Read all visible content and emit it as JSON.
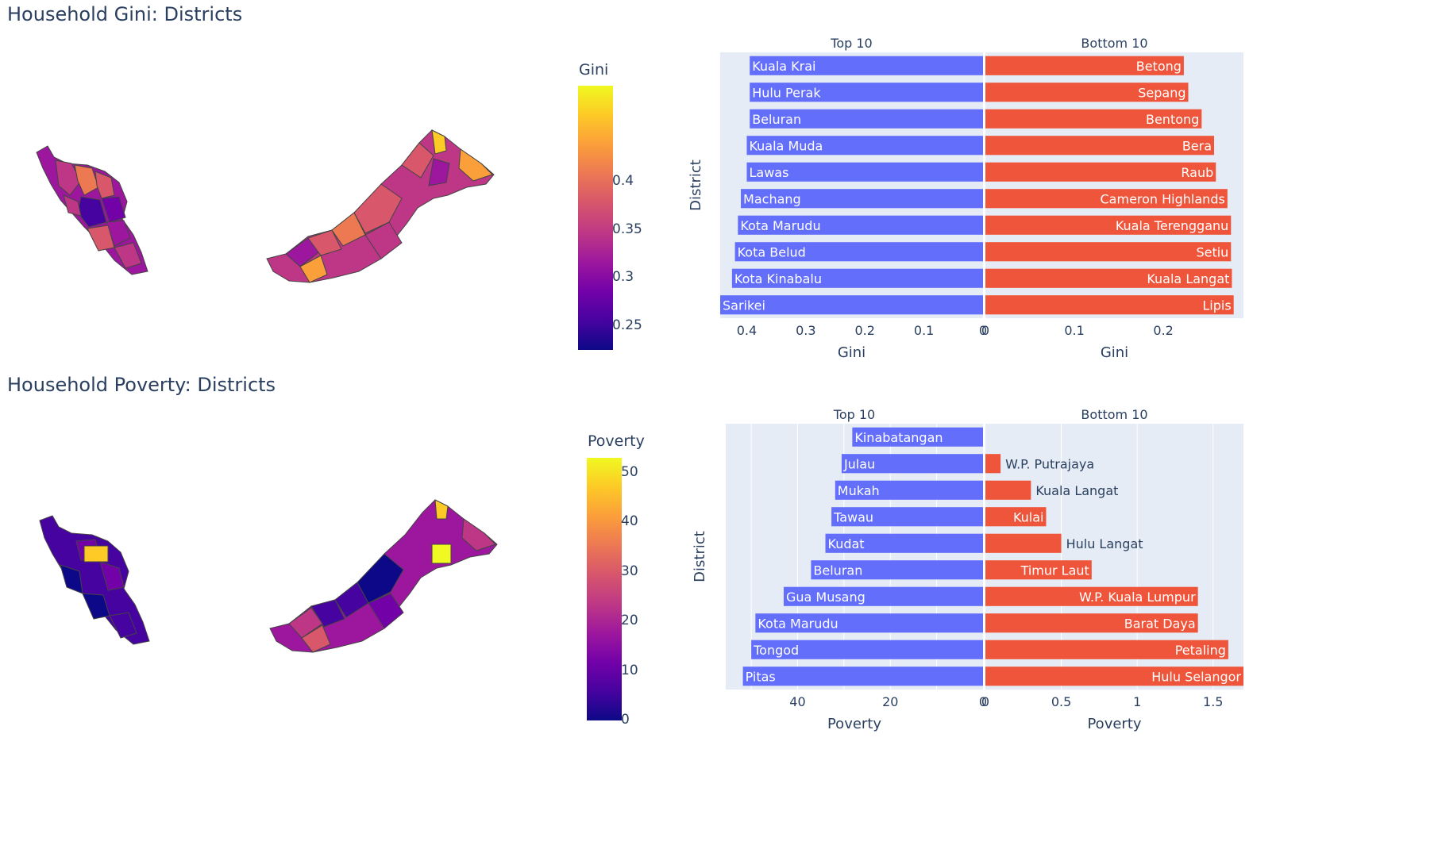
{
  "gini_section": {
    "title": "Household Gini: Districts",
    "colorbar": {
      "title": "Gini",
      "ticks": [
        "0.4",
        "0.35",
        "0.3",
        "0.25"
      ],
      "tick_values": [
        0.4,
        0.35,
        0.3,
        0.25
      ],
      "range": [
        0.225,
        0.5
      ],
      "colorscale": "plasma"
    }
  },
  "poverty_section": {
    "title": "Household Poverty: Districts",
    "colorbar": {
      "title": "Poverty",
      "ticks": [
        "50",
        "40",
        "30",
        "20",
        "10",
        "0"
      ],
      "tick_values": [
        50,
        40,
        30,
        20,
        10,
        0
      ],
      "range": [
        0,
        53
      ],
      "colorscale": "plasma"
    }
  },
  "colors": {
    "top_bar": "#636efa",
    "bottom_bar": "#ef553b",
    "plot_bg": "#e5ecf6",
    "text": "#2a3f5f",
    "map_outline": "#444444",
    "plasma": [
      "#0d0887",
      "#46039f",
      "#7201a8",
      "#9c179e",
      "#bd3786",
      "#d8576b",
      "#ed7953",
      "#fb9f3a",
      "#fdca26",
      "#f0f921"
    ]
  },
  "chart_data": [
    {
      "type": "bar",
      "orientation": "horizontal",
      "panel": "Top 10",
      "subtitle": "Top 10",
      "ylabel": "District",
      "xlabel": "Gini",
      "x_reversed": true,
      "xlim": [
        0.445,
        0
      ],
      "xticks": [
        0.4,
        0.3,
        0.2,
        0.1,
        0
      ],
      "xtick_labels": [
        "0.4",
        "0.3",
        "0.2",
        "0.1",
        "0"
      ],
      "categories": [
        "Kuala Krai",
        "Hulu Perak",
        "Beluran",
        "Kuala Muda",
        "Lawas",
        "Machang",
        "Kota Marudu",
        "Kota Belud",
        "Kota Kinabalu",
        "Sarikei"
      ],
      "values": [
        0.395,
        0.395,
        0.395,
        0.4,
        0.4,
        0.41,
        0.415,
        0.42,
        0.425,
        0.445
      ],
      "label_position": "inside"
    },
    {
      "type": "bar",
      "orientation": "horizontal",
      "panel": "Bottom 10",
      "subtitle": "Bottom 10",
      "xlabel": "Gini",
      "xlim": [
        0,
        0.29
      ],
      "xticks": [
        0,
        0.1,
        0.2
      ],
      "xtick_labels": [
        "0",
        "0.1",
        "0.2"
      ],
      "categories": [
        "Betong",
        "Sepang",
        "Bentong",
        "Bera",
        "Raub",
        "Cameron Highlands",
        "Kuala Terengganu",
        "Setiu",
        "Kuala Langat",
        "Lipis"
      ],
      "values": [
        0.223,
        0.228,
        0.243,
        0.257,
        0.259,
        0.272,
        0.276,
        0.276,
        0.277,
        0.279
      ],
      "label_position": "inside"
    },
    {
      "type": "bar",
      "orientation": "horizontal",
      "panel": "Top 10",
      "subtitle": "Top 10",
      "ylabel": "District",
      "xlabel": "Poverty",
      "x_reversed": true,
      "xlim": [
        55.5,
        0
      ],
      "xticks": [
        40,
        20,
        0
      ],
      "xtick_labels": [
        "40",
        "20",
        "0"
      ],
      "gridlines": [
        50,
        40,
        30,
        20,
        10
      ],
      "categories": [
        "Kinabatangan",
        "Julau",
        "Mukah",
        "Tawau",
        "Kudat",
        "Beluran",
        "Gua Musang",
        "Kota Marudu",
        "Tongod",
        "Pitas"
      ],
      "values": [
        28.2,
        30.5,
        31.9,
        32.7,
        34.0,
        37.1,
        43.0,
        49.1,
        50.0,
        51.8
      ],
      "label_position": "inside"
    },
    {
      "type": "bar",
      "orientation": "horizontal",
      "panel": "Bottom 10",
      "subtitle": "Bottom 10",
      "xlabel": "Poverty",
      "xlim": [
        0,
        1.7
      ],
      "xticks": [
        0,
        0.5,
        1,
        1.5
      ],
      "xtick_labels": [
        "0",
        "0.5",
        "1",
        "1.5"
      ],
      "gridlines": [
        0.5,
        1,
        1.5
      ],
      "categories": [
        "",
        "W.P. Putrajaya",
        "Kuala Langat",
        "Kulai",
        "Hulu Langat",
        "Timur Laut",
        "W.P. Kuala Lumpur",
        "Barat Daya",
        "Petaling",
        "Hulu Selangor"
      ],
      "values": [
        0,
        0.1,
        0.3,
        0.4,
        0.5,
        0.7,
        1.4,
        1.4,
        1.6,
        1.7
      ],
      "label_position": "auto"
    }
  ]
}
